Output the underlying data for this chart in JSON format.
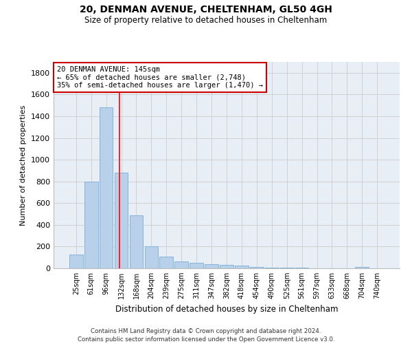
{
  "title1": "20, DENMAN AVENUE, CHELTENHAM, GL50 4GH",
  "title2": "Size of property relative to detached houses in Cheltenham",
  "xlabel": "Distribution of detached houses by size in Cheltenham",
  "ylabel": "Number of detached properties",
  "footer1": "Contains HM Land Registry data © Crown copyright and database right 2024.",
  "footer2": "Contains public sector information licensed under the Open Government Licence v3.0.",
  "bar_labels": [
    "25sqm",
    "61sqm",
    "96sqm",
    "132sqm",
    "168sqm",
    "204sqm",
    "239sqm",
    "275sqm",
    "311sqm",
    "347sqm",
    "382sqm",
    "418sqm",
    "454sqm",
    "490sqm",
    "525sqm",
    "561sqm",
    "597sqm",
    "633sqm",
    "668sqm",
    "704sqm",
    "740sqm"
  ],
  "bar_values": [
    125,
    800,
    1480,
    880,
    490,
    205,
    105,
    65,
    50,
    35,
    30,
    25,
    12,
    8,
    5,
    4,
    3,
    2,
    2,
    15,
    0
  ],
  "bar_color": "#b8d0ea",
  "bar_edgecolor": "#7aaed6",
  "ylim": [
    0,
    1900
  ],
  "yticks": [
    0,
    200,
    400,
    600,
    800,
    1000,
    1200,
    1400,
    1600,
    1800
  ],
  "annotation_title": "20 DENMAN AVENUE: 145sqm",
  "annotation_line1": "← 65% of detached houses are smaller (2,748)",
  "annotation_line2": "35% of semi-detached houses are larger (1,470) →",
  "annotation_box_color": "#ffffff",
  "annotation_border_color": "#cc0000",
  "grid_color": "#cccccc",
  "background_color": "#ffffff",
  "plot_bg_color": "#e8eef6"
}
